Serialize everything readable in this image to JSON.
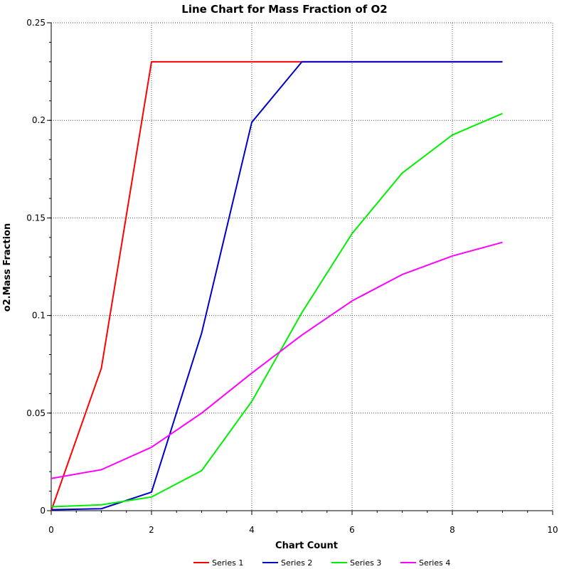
{
  "chart_data": {
    "type": "line",
    "title": "Line Chart for Mass Fraction of O2",
    "xlabel": "Chart Count",
    "ylabel": "o2.Mass Fraction",
    "xlim": [
      0,
      10
    ],
    "ylim": [
      0,
      0.25
    ],
    "xticks": [
      0,
      2,
      4,
      6,
      8,
      10
    ],
    "yticks": [
      0,
      0.05,
      0.1,
      0.15,
      0.2,
      0.25
    ],
    "xtick_labels": [
      "0",
      "2",
      "4",
      "6",
      "8",
      "10"
    ],
    "ytick_labels": [
      "0",
      "0.05",
      "0.1",
      "0.15",
      "0.2",
      "0.25"
    ],
    "grid": true,
    "legend_position": "bottom",
    "series": [
      {
        "name": "Series 1",
        "color": "#ff0000",
        "x": [
          0,
          1,
          2,
          3,
          4,
          5,
          6,
          7,
          8,
          9
        ],
        "y": [
          0.0,
          0.073,
          0.23,
          0.23,
          0.23,
          0.23,
          0.23,
          0.23,
          0.23,
          0.23
        ]
      },
      {
        "name": "Series 2",
        "color": "#0000cc",
        "x": [
          0,
          1,
          2,
          3,
          4,
          5,
          6,
          7,
          8,
          9
        ],
        "y": [
          0.0005,
          0.001,
          0.0095,
          0.091,
          0.199,
          0.23,
          0.23,
          0.23,
          0.23,
          0.23
        ]
      },
      {
        "name": "Series 3",
        "color": "#00ee00",
        "x": [
          0,
          1,
          2,
          3,
          4,
          5,
          6,
          7,
          8,
          9
        ],
        "y": [
          0.002,
          0.003,
          0.007,
          0.0205,
          0.056,
          0.1015,
          0.142,
          0.173,
          0.1925,
          0.2035
        ]
      },
      {
        "name": "Series 4",
        "color": "#ff00ff",
        "x": [
          0,
          1,
          2,
          3,
          4,
          5,
          6,
          7,
          8,
          9
        ],
        "y": [
          0.0165,
          0.021,
          0.0325,
          0.05,
          0.0705,
          0.09,
          0.1075,
          0.121,
          0.1305,
          0.1375
        ]
      }
    ]
  }
}
